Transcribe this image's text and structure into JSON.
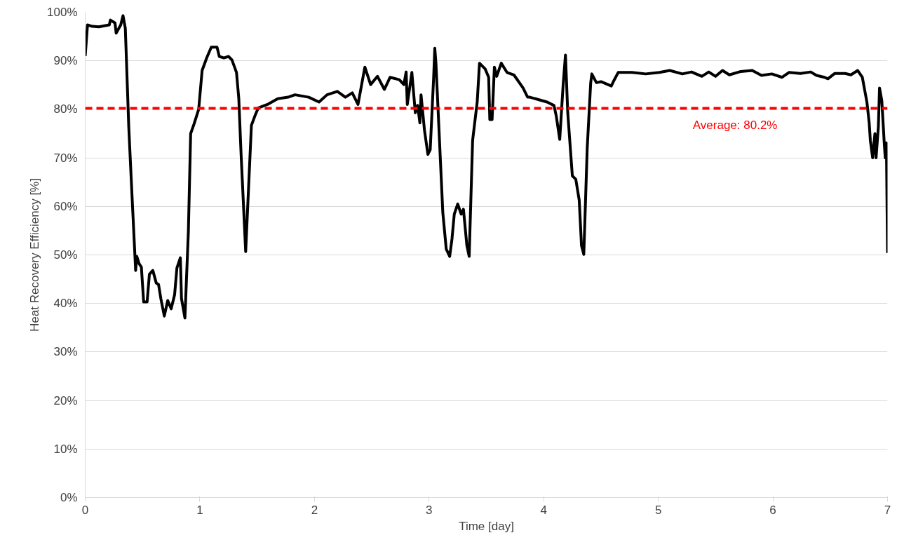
{
  "chart_data": {
    "type": "line",
    "xlabel": "Time [day]",
    "ylabel": "Heat Recovery Efficiency [%]",
    "xlim": [
      0,
      7
    ],
    "xticks": [
      0,
      1,
      2,
      3,
      4,
      5,
      6,
      7
    ],
    "ylim": [
      0,
      100
    ],
    "yticks": [
      {
        "value": 0,
        "label": "0%"
      },
      {
        "value": 10,
        "label": "10%"
      },
      {
        "value": 20,
        "label": "20%"
      },
      {
        "value": 30,
        "label": "30%"
      },
      {
        "value": 40,
        "label": "40%"
      },
      {
        "value": 50,
        "label": "50%"
      },
      {
        "value": 60,
        "label": "60%"
      },
      {
        "value": 70,
        "label": "70%"
      },
      {
        "value": 80,
        "label": "80%"
      },
      {
        "value": 90,
        "label": "90%"
      },
      {
        "value": 100,
        "label": "100%"
      }
    ],
    "grid": "y",
    "marker": "none",
    "line_style": "solid",
    "series": [
      {
        "color": "#000000",
        "x": [
          0,
          0.02,
          0.06,
          0.12,
          0.21,
          0.22,
          0.26,
          0.27,
          0.31,
          0.33,
          0.35,
          0.38,
          0.4,
          0.44,
          0.45,
          0.47,
          0.49,
          0.51,
          0.54,
          0.56,
          0.59,
          0.62,
          0.64,
          0.66,
          0.69,
          0.72,
          0.75,
          0.78,
          0.8,
          0.83,
          0.84,
          0.87,
          0.9,
          0.92,
          0.95,
          0.99,
          1.02,
          1.06,
          1.1,
          1.15,
          1.17,
          1.21,
          1.25,
          1.28,
          1.32,
          1.34,
          1.36,
          1.4,
          1.43,
          1.45,
          1.48,
          1.51,
          1.59,
          1.68,
          1.77,
          1.83,
          1.95,
          2.04,
          2.11,
          2.2,
          2.27,
          2.33,
          2.38,
          2.44,
          2.49,
          2.55,
          2.61,
          2.66,
          2.74,
          2.78,
          2.8,
          2.81,
          2.85,
          2.88,
          2.9,
          2.92,
          2.93,
          2.96,
          2.99,
          3.01,
          3.04,
          3.05,
          3.06,
          3.12,
          3.15,
          3.18,
          3.2,
          3.22,
          3.25,
          3.28,
          3.3,
          3.33,
          3.35,
          3.38,
          3.42,
          3.44,
          3.49,
          3.52,
          3.53,
          3.55,
          3.57,
          3.59,
          3.63,
          3.68,
          3.74,
          3.82,
          3.86,
          3.88,
          3.97,
          4.03,
          4.09,
          4.11,
          4.14,
          4.17,
          4.19,
          4.21,
          4.25,
          4.28,
          4.31,
          4.33,
          4.35,
          4.38,
          4.41,
          4.42,
          4.46,
          4.5,
          4.59,
          4.61,
          4.65,
          4.77,
          4.89,
          5.01,
          5.1,
          5.21,
          5.29,
          5.38,
          5.44,
          5.5,
          5.56,
          5.62,
          5.72,
          5.82,
          5.9,
          5.99,
          6.08,
          6.14,
          6.24,
          6.33,
          6.38,
          6.45,
          6.48,
          6.54,
          6.63,
          6.68,
          6.74,
          6.78,
          6.82,
          6.84,
          6.85,
          6.87,
          6.89,
          6.9,
          6.92,
          6.93,
          6.95,
          6.97,
          6.98,
          6.99,
          7.0
        ],
        "values": [
          91,
          97.4,
          97.1,
          97,
          97.4,
          98.4,
          97.8,
          95.7,
          97.4,
          99.3,
          96.7,
          76.4,
          66.3,
          46.8,
          49.7,
          48.2,
          47.5,
          40.3,
          40.3,
          46,
          46.8,
          44.2,
          43.9,
          41,
          37.4,
          40.6,
          38.9,
          41.8,
          47.3,
          49.4,
          41,
          37,
          54.8,
          75,
          77,
          80,
          88,
          90.6,
          92.8,
          92.8,
          90.9,
          90.6,
          90.9,
          90.2,
          87.6,
          82.2,
          70.7,
          50.7,
          66.3,
          76.7,
          78.6,
          80.3,
          81,
          82.2,
          82.5,
          83,
          82.5,
          81.5,
          83,
          83.7,
          82.5,
          83.4,
          81,
          88.7,
          85.1,
          86.8,
          84.1,
          86.6,
          86.1,
          85.1,
          87.7,
          81,
          87.6,
          79.3,
          80.8,
          77.2,
          83,
          75.7,
          70.7,
          71.7,
          86.6,
          92.6,
          89.5,
          58.7,
          51.2,
          49.7,
          53.3,
          58.4,
          60.5,
          58.4,
          59.4,
          51.9,
          49.7,
          73.6,
          81.5,
          89.5,
          88.3,
          86.6,
          77.9,
          77.9,
          88.7,
          86.8,
          89.5,
          87.6,
          87.1,
          84.4,
          82.5,
          82.5,
          81.9,
          81.5,
          80.8,
          78.6,
          73.8,
          85.1,
          91.2,
          79.3,
          66.3,
          65.6,
          61.3,
          51.9,
          50.1,
          72.1,
          85.4,
          87.3,
          85.5,
          85.7,
          84.8,
          85.8,
          87.6,
          87.6,
          87.3,
          87.6,
          88,
          87.3,
          87.7,
          86.8,
          87.7,
          86.8,
          88,
          87.1,
          87.8,
          88,
          87,
          87.3,
          86.6,
          87.6,
          87.4,
          87.7,
          87,
          86.6,
          86.3,
          87.4,
          87.4,
          87.1,
          88,
          86.6,
          81.5,
          77.2,
          73.6,
          70,
          75,
          70,
          76.4,
          84.4,
          81.8,
          73.6,
          70,
          73.1,
          50.4
        ]
      }
    ],
    "ref_lines": [
      {
        "axis": "y",
        "value": 80.2,
        "label": "Average: 80.2%",
        "color": "#ff0000",
        "line_style": "dashed"
      }
    ]
  }
}
